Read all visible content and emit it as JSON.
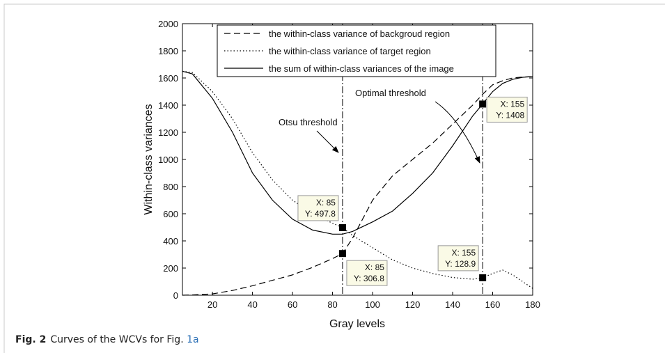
{
  "chart_data": {
    "type": "line",
    "x_label": "Gray levels",
    "y_label": "Within-class variances",
    "xlim": [
      5,
      180
    ],
    "xticks": [
      20,
      40,
      60,
      80,
      100,
      120,
      140,
      160,
      180
    ],
    "ylim": [
      0,
      2000
    ],
    "yticks": [
      0,
      200,
      400,
      600,
      800,
      1000,
      1200,
      1400,
      1600,
      1800,
      2000
    ],
    "x": [
      5,
      10,
      20,
      30,
      40,
      50,
      60,
      70,
      80,
      85,
      90,
      100,
      110,
      120,
      130,
      140,
      150,
      155,
      160,
      165,
      170,
      175,
      180
    ],
    "series": [
      {
        "name": "the within-class variance of backgroud region",
        "color": "#000000",
        "line_style": "dashed",
        "values": [
          0,
          2,
          10,
          35,
          70,
          110,
          150,
          205,
          270,
          306.8,
          420,
          700,
          880,
          1000,
          1120,
          1260,
          1400,
          1480,
          1550,
          1580,
          1600,
          1607,
          1610
        ]
      },
      {
        "name": "the within-class variance of target region",
        "color": "#000000",
        "line_style": "dotted",
        "values": [
          1650,
          1640,
          1500,
          1300,
          1050,
          850,
          700,
          600,
          530,
          497.8,
          440,
          350,
          260,
          200,
          160,
          130,
          118,
          128.9,
          160,
          185,
          150,
          100,
          50
        ]
      },
      {
        "name": "the sum of within-class variances of the image",
        "color": "#000000",
        "line_style": "solid",
        "values": [
          1650,
          1630,
          1450,
          1200,
          900,
          700,
          560,
          480,
          450,
          450,
          470,
          540,
          620,
          750,
          900,
          1100,
          1320,
          1408,
          1500,
          1560,
          1590,
          1605,
          1610
        ]
      }
    ],
    "vlines": [
      85,
      155
    ],
    "datatips": [
      {
        "x": 85,
        "y": 497.8,
        "label_x": "X: 85",
        "label_y": "Y: 497.8"
      },
      {
        "x": 85,
        "y": 306.8,
        "label_x": "X: 85",
        "label_y": "Y: 306.8"
      },
      {
        "x": 155,
        "y": 1408,
        "label_x": "X: 155",
        "label_y": "Y: 1408"
      },
      {
        "x": 155,
        "y": 128.9,
        "label_x": "X: 155",
        "label_y": "Y: 128.9"
      }
    ],
    "annotations": [
      "Otsu threshold",
      "Optimal threshold"
    ],
    "legend": "top"
  },
  "caption": {
    "label": "Fig. 2",
    "text": "Curves of the WCVs for Fig. ",
    "ref": "1a"
  }
}
